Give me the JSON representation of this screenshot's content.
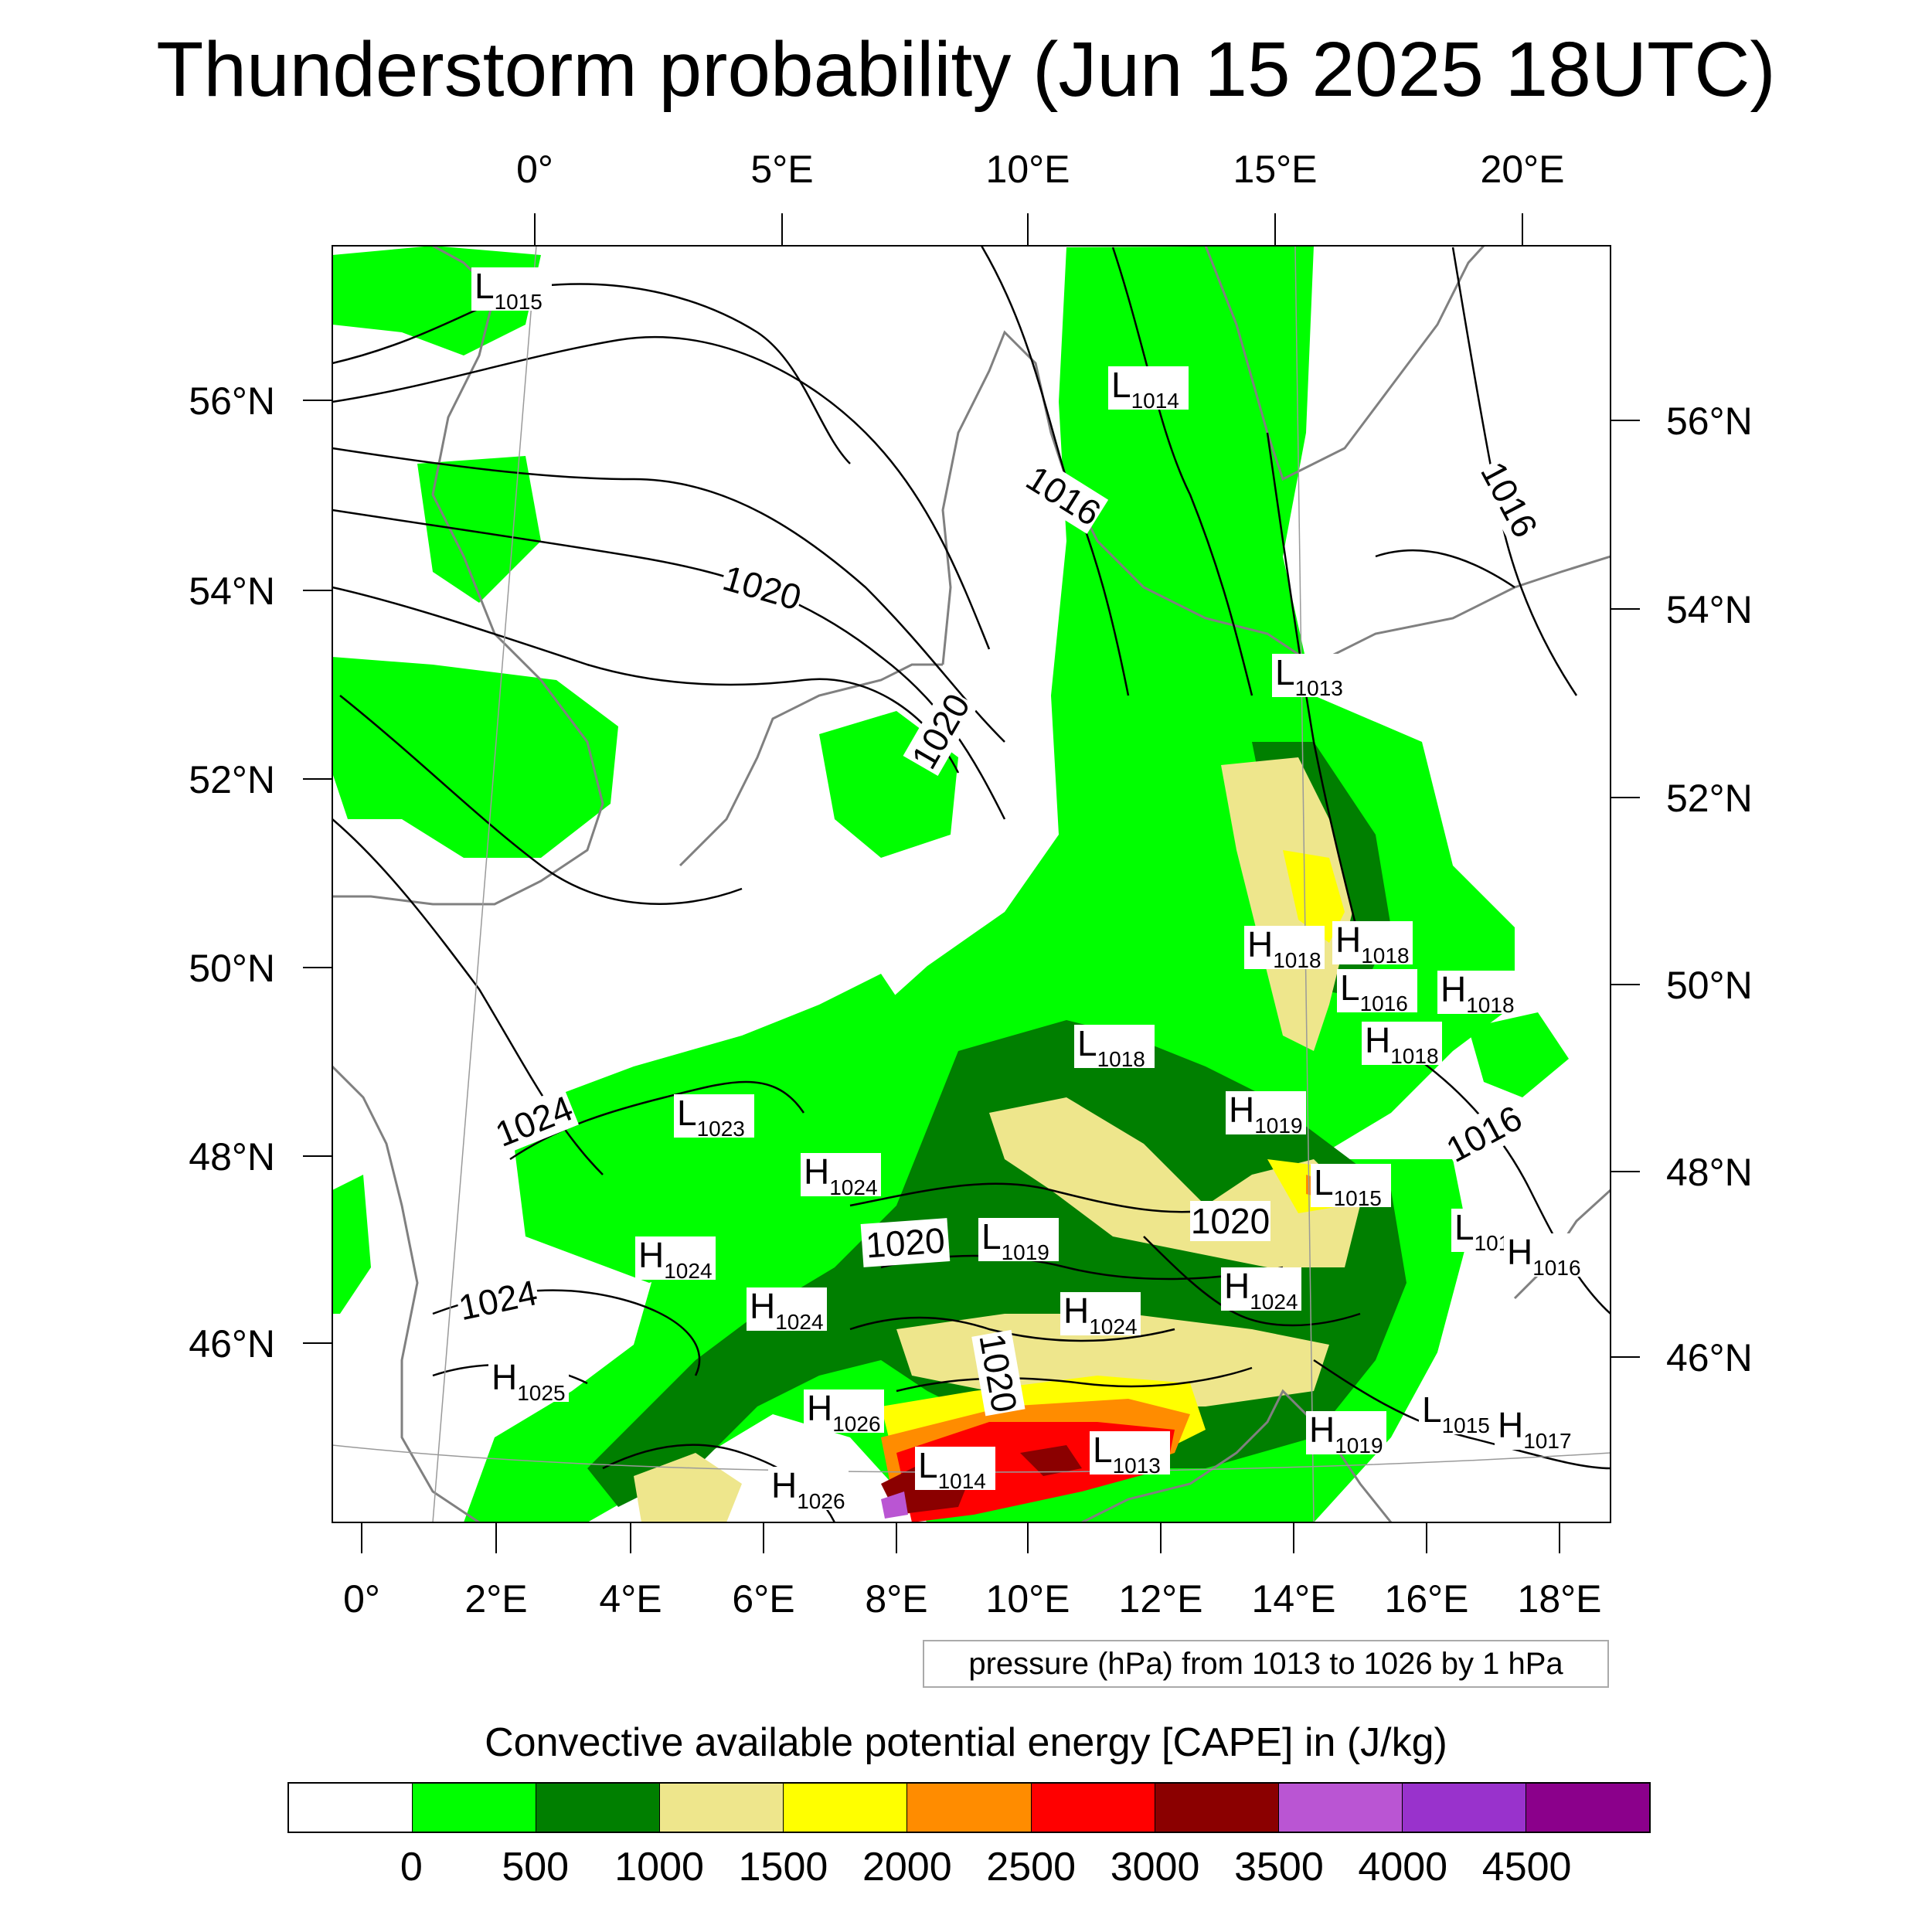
{
  "title": "Thunderstorm probability (Jun 15 2025 18UTC)",
  "map": {
    "top_lon_labels": [
      "0°",
      "5°E",
      "10°E",
      "15°E",
      "20°E"
    ],
    "bottom_lon_labels": [
      "0°",
      "2°E",
      "4°E",
      "6°E",
      "8°E",
      "10°E",
      "12°E",
      "14°E",
      "16°E",
      "18°E"
    ],
    "left_lat_labels": [
      "56°N",
      "54°N",
      "52°N",
      "50°N",
      "48°N",
      "46°N"
    ],
    "right_lat_labels": [
      "56°N",
      "54°N",
      "52°N",
      "50°N",
      "48°N",
      "46°N"
    ],
    "pressure_centers": [
      {
        "type": "L",
        "value": "1015"
      },
      {
        "type": "L",
        "value": "1014"
      },
      {
        "type": "L",
        "value": "1013"
      },
      {
        "type": "H",
        "value": "1018"
      },
      {
        "type": "H",
        "value": "1018"
      },
      {
        "type": "L",
        "value": "1016"
      },
      {
        "type": "H",
        "value": "1018"
      },
      {
        "type": "H",
        "value": "1018"
      },
      {
        "type": "L",
        "value": "1018"
      },
      {
        "type": "H",
        "value": "1019"
      },
      {
        "type": "L",
        "value": "1023"
      },
      {
        "type": "H",
        "value": "1024"
      },
      {
        "type": "L",
        "value": "1015"
      },
      {
        "type": "L",
        "value": "1014"
      },
      {
        "type": "H",
        "value": "1016"
      },
      {
        "type": "H",
        "value": "1024"
      },
      {
        "type": "L",
        "value": "1019"
      },
      {
        "type": "H",
        "value": "1024"
      },
      {
        "type": "H",
        "value": "1024"
      },
      {
        "type": "H",
        "value": "1024"
      },
      {
        "type": "H",
        "value": "1025"
      },
      {
        "type": "H",
        "value": "1026"
      },
      {
        "type": "L",
        "value": "1014"
      },
      {
        "type": "L",
        "value": "1013"
      },
      {
        "type": "H",
        "value": "1026"
      },
      {
        "type": "H",
        "value": "1019"
      },
      {
        "type": "L",
        "value": "1015"
      },
      {
        "type": "H",
        "value": "1017"
      }
    ],
    "isobar_labels": [
      "1016",
      "1016",
      "1020",
      "1020",
      "1024",
      "1024",
      "1016",
      "1020",
      "1020",
      "1020"
    ]
  },
  "pressure_legend": "pressure (hPa) from 1013 to 1026 by 1 hPa",
  "colorbar": {
    "title": "Convective available potential energy [CAPE] in (J/kg)",
    "colors": [
      "#ffffff",
      "#00ff00",
      "#007f00",
      "#eee68c",
      "#ffff00",
      "#ff8c00",
      "#ff0000",
      "#8b0000",
      "#ba55d3",
      "#9932cc",
      "#8b008b"
    ],
    "labels": [
      "0",
      "500",
      "1000",
      "1500",
      "2000",
      "2500",
      "3000",
      "3500",
      "4000",
      "4500"
    ]
  }
}
